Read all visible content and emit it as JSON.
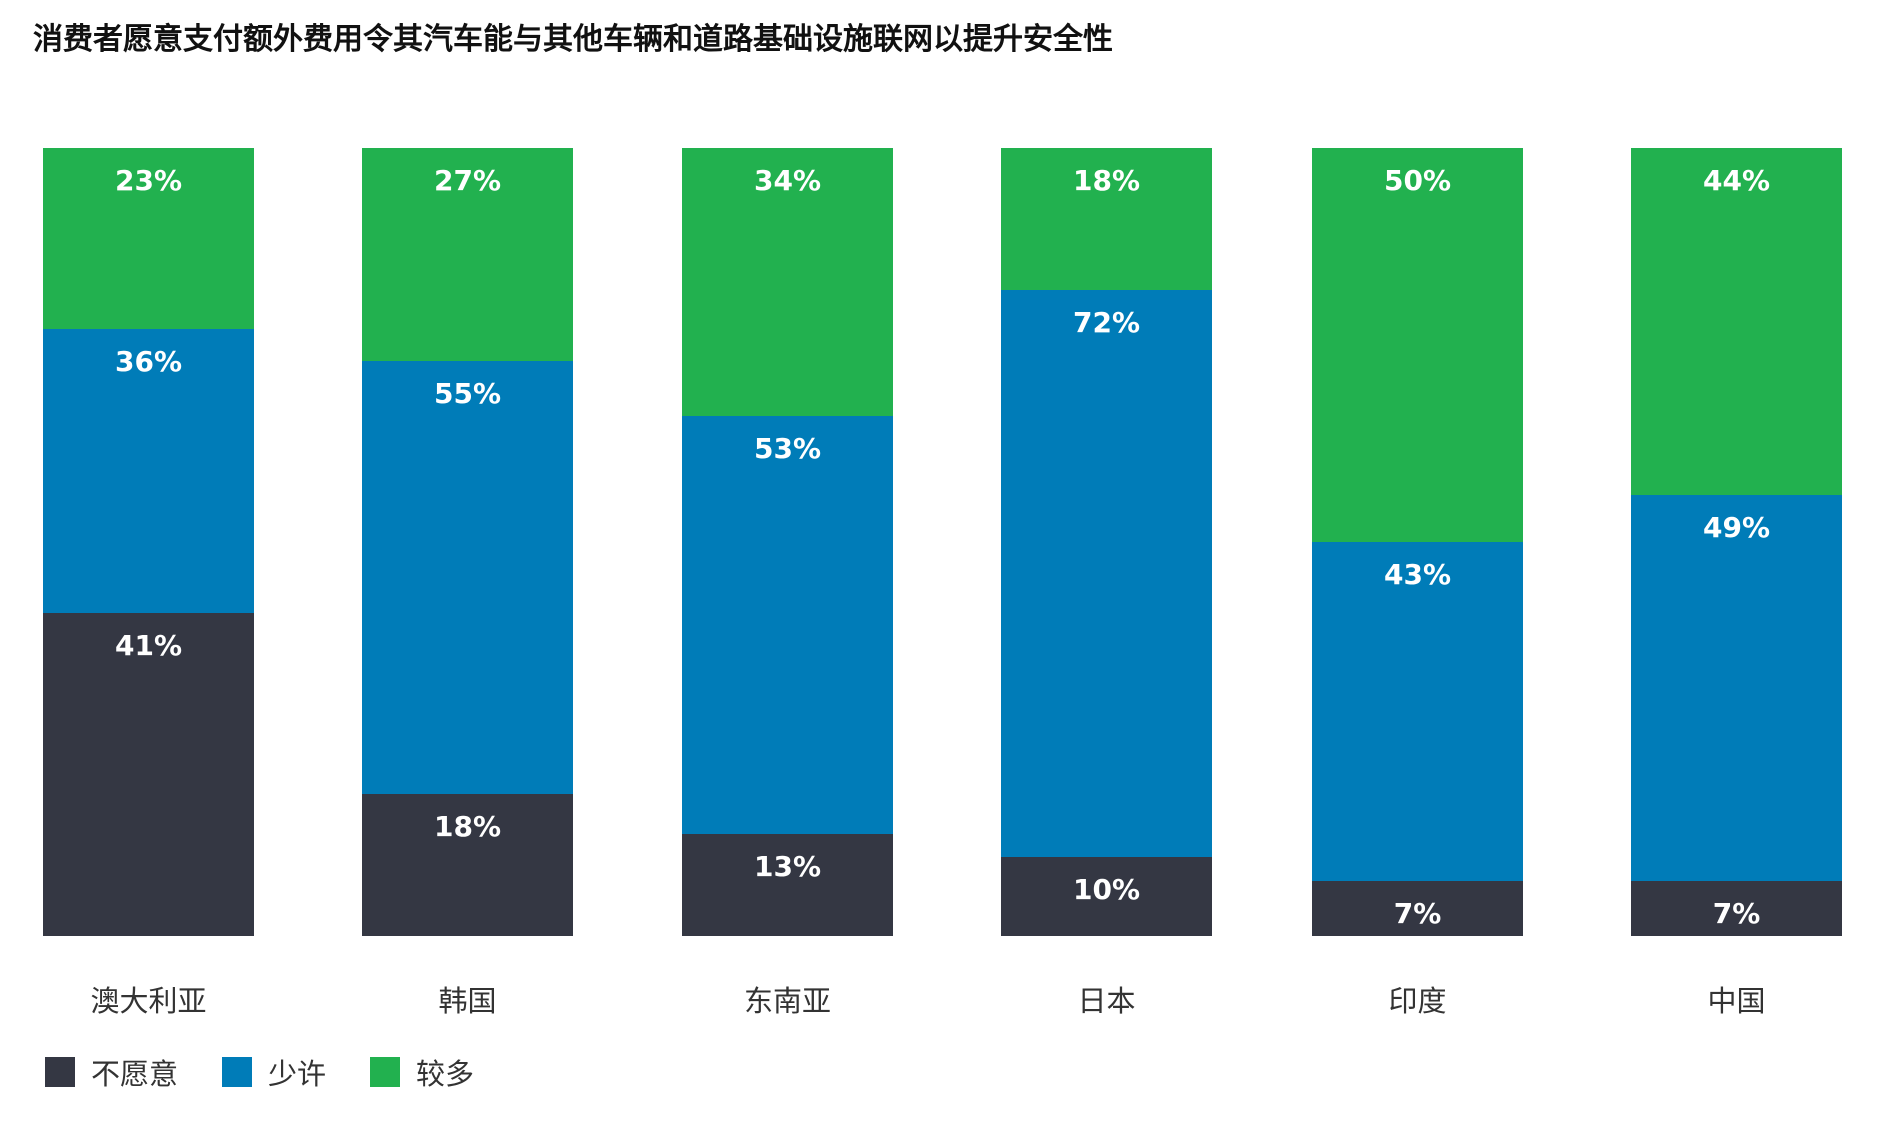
{
  "title": "消费者愿意支付额外费用令其汽车能与其他车辆和道路基础设施联网以提升安全性",
  "colors": {
    "unwilling": "#343743",
    "little": "#007cb8",
    "more": "#22b14f"
  },
  "legend": [
    {
      "key": "unwilling",
      "label": "不愿意",
      "color": "#343743"
    },
    {
      "key": "little",
      "label": "少许",
      "color": "#007cb8"
    },
    {
      "key": "more",
      "label": "较多",
      "color": "#22b14f"
    }
  ],
  "chart_data": {
    "type": "bar",
    "stacked": true,
    "title": "消费者愿意支付额外费用令其汽车能与其他车辆和道路基础设施联网以提升安全性",
    "xlabel": "",
    "ylabel": "",
    "ylim": [
      0,
      100
    ],
    "grid": false,
    "legend_position": "bottom-left",
    "categories": [
      "澳大利亚",
      "韩国",
      "东南亚",
      "日本",
      "印度",
      "中国"
    ],
    "series": [
      {
        "name": "不愿意",
        "color": "#343743",
        "values": [
          41,
          18,
          13,
          10,
          7,
          7
        ]
      },
      {
        "name": "少许",
        "color": "#007cb8",
        "values": [
          36,
          55,
          53,
          72,
          43,
          49
        ]
      },
      {
        "name": "较多",
        "color": "#22b14f",
        "values": [
          23,
          27,
          34,
          18,
          50,
          44
        ]
      }
    ],
    "labels": [
      {
        "category": "澳大利亚",
        "unwilling": "41%",
        "little": "36%",
        "more": "23%"
      },
      {
        "category": "韩国",
        "unwilling": "18%",
        "little": "55%",
        "more": "27%"
      },
      {
        "category": "东南亚",
        "unwilling": "13%",
        "little": "53%",
        "more": "34%"
      },
      {
        "category": "日本",
        "unwilling": "10%",
        "little": "72%",
        "more": "18%"
      },
      {
        "category": "印度",
        "unwilling": "7%",
        "little": "43%",
        "more": "50%"
      },
      {
        "category": "中国",
        "unwilling": "7%",
        "little": "49%",
        "more": "44%"
      }
    ]
  }
}
